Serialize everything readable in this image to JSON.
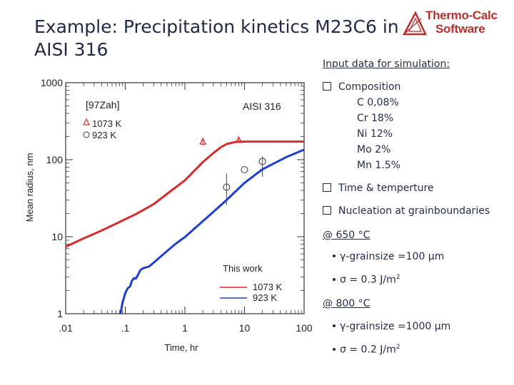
{
  "slide": {
    "title_line1": "Example: Precipitation kinetics M23C6 in",
    "title_line2": "AISI 316",
    "logo_line1": "Thermo-Calc",
    "logo_line2": "Software",
    "input_heading": "Input data for simulation:",
    "composition_heading": "Composition",
    "composition": [
      "C 0,08%",
      "Cr 18%",
      "Ni 12%",
      "Mo 2%",
      "Mn 1.5%"
    ],
    "time_temp": "Time & temperture",
    "nucleation": "Nucleation at grainboundaries",
    "at650": "@ 650 °C",
    "at650_grainsize": "γ-grainsize =100 μm",
    "at650_sigma_prefix": "σ = 0.3 J/m",
    "at650_sigma_exp": "2",
    "at800": "@ 800 °C",
    "at800_grainsize": "γ-grainsize =1000 μm",
    "at800_sigma_prefix": "σ = 0.2 J/m",
    "at800_sigma_exp": "2",
    "colors": {
      "red": "#d62c2c",
      "blue": "#1f3fcf",
      "text": "#1f2a44",
      "logo": "#b5302d"
    }
  },
  "chart_data": {
    "type": "line",
    "xlabel": "Time, hr",
    "ylabel": "Mean radius, nm",
    "xscale": "log",
    "yscale": "log",
    "xlim": [
      0.01,
      100
    ],
    "ylim": [
      1,
      1000
    ],
    "xticks": [
      ".01",
      ".1",
      "1",
      "10",
      "100"
    ],
    "yticks": [
      "1",
      "10",
      "100",
      "1000"
    ],
    "annotations": {
      "ref": "[97Zah]",
      "steel": "AISI 316",
      "this_work": "This work"
    },
    "marker_legend": [
      {
        "symbol": "triangle",
        "label": "1073 K"
      },
      {
        "symbol": "circle",
        "label": "923 K"
      }
    ],
    "line_legend": [
      {
        "color": "red",
        "label": "1073 K"
      },
      {
        "color": "blue",
        "label": "923 K"
      }
    ],
    "series": [
      {
        "name": "1073 K",
        "color": "red",
        "x": [
          0.01,
          0.02,
          0.04,
          0.08,
          0.15,
          0.3,
          0.6,
          1,
          2,
          3,
          4,
          5,
          7,
          10,
          20,
          50,
          100
        ],
        "y": [
          7.4,
          9.5,
          12.0,
          15.5,
          19.6,
          26.5,
          40,
          54,
          93,
          122,
          145,
          160,
          170,
          172,
          172,
          172,
          172
        ]
      },
      {
        "name": "923 K",
        "color": "blue",
        "x": [
          0.083,
          0.09,
          0.1,
          0.11,
          0.12,
          0.13,
          0.14,
          0.15,
          0.16,
          0.18,
          0.2,
          0.25,
          0.3,
          0.4,
          0.5,
          0.7,
          1,
          2,
          3,
          5,
          10,
          20,
          50,
          100
        ],
        "y": [
          1.0,
          1.4,
          1.85,
          2.15,
          2.25,
          2.7,
          2.9,
          2.85,
          3.1,
          3.7,
          3.9,
          4.1,
          4.6,
          5.6,
          6.5,
          8.1,
          9.9,
          15.9,
          21,
          30,
          50,
          75,
          108,
          135
        ]
      }
    ],
    "markers": [
      {
        "series": "1073 K",
        "shape": "triangle",
        "x": 2,
        "y": 170,
        "ylow": 152,
        "yhigh": 192
      },
      {
        "series": "1073 K",
        "shape": "triangle",
        "x": 8,
        "y": 178,
        "ylow": 168,
        "yhigh": 190
      },
      {
        "series": "923 K",
        "shape": "circle",
        "x": 5,
        "y": 44,
        "ylow": 26,
        "yhigh": 66
      },
      {
        "series": "923 K",
        "shape": "circle",
        "x": 10,
        "y": 74
      },
      {
        "series": "923 K",
        "shape": "circle",
        "x": 20,
        "y": 95,
        "ylow": 60,
        "yhigh": 110
      }
    ]
  }
}
